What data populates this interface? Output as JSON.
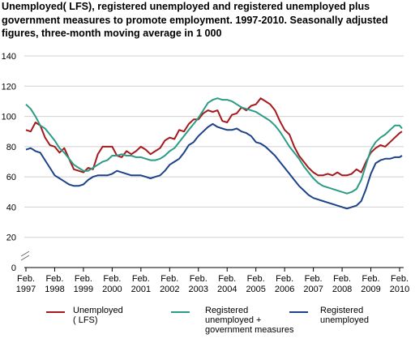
{
  "title_lines": [
    "Unemployed( LFS), registered unemployed and registered unemployed plus",
    "government measures to promote employment. 1997-2010. Seasonally adjusted",
    "figures, three-month moving average in 1 000"
  ],
  "chart_data": {
    "type": "line",
    "title": "Unemployed( LFS), registered unemployed and registered unemployed plus government measures to promote employment. 1997-2010. Seasonally adjusted figures, three-month moving average in 1 000",
    "xlabel": "",
    "ylabel": "",
    "ylim": [
      0,
      140
    ],
    "y_ticks": [
      0,
      20,
      40,
      60,
      80,
      100,
      120,
      140
    ],
    "y_axis_break": true,
    "grid": "horizontal",
    "legend_position": "bottom",
    "x_tick_labels": [
      [
        "Feb.",
        "1997"
      ],
      [
        "Feb.",
        "1998"
      ],
      [
        "Feb.",
        "1999"
      ],
      [
        "Feb.",
        "2000"
      ],
      [
        "Feb.",
        "2001"
      ],
      [
        "Feb.",
        "2002"
      ],
      [
        "Feb.",
        "2003"
      ],
      [
        "Feb.",
        "2004"
      ],
      [
        "Feb.",
        "2005"
      ],
      [
        "Feb.",
        "2006"
      ],
      [
        "Feb.",
        "2007"
      ],
      [
        "Feb.",
        "2008"
      ],
      [
        "Feb.",
        "2009"
      ],
      [
        "Feb.",
        "2010"
      ]
    ],
    "series": [
      {
        "name": "Unemployed ( LFS)",
        "legend_lines": [
          "Unemployed",
          "( LFS)"
        ],
        "color": "#a5191d",
        "points": [
          [
            "1997-02",
            91
          ],
          [
            "1997-04",
            90
          ],
          [
            "1997-06",
            96
          ],
          [
            "1997-08",
            94
          ],
          [
            "1997-10",
            86
          ],
          [
            "1997-12",
            81
          ],
          [
            "1998-02",
            80
          ],
          [
            "1998-04",
            76
          ],
          [
            "1998-06",
            79
          ],
          [
            "1998-08",
            72
          ],
          [
            "1998-10",
            65
          ],
          [
            "1998-12",
            64
          ],
          [
            "1999-02",
            63
          ],
          [
            "1999-04",
            66
          ],
          [
            "1999-06",
            65
          ],
          [
            "1999-08",
            75
          ],
          [
            "1999-10",
            80
          ],
          [
            "1999-12",
            80
          ],
          [
            "2000-02",
            80
          ],
          [
            "2000-04",
            74
          ],
          [
            "2000-06",
            73
          ],
          [
            "2000-08",
            77
          ],
          [
            "2000-10",
            75
          ],
          [
            "2000-12",
            77
          ],
          [
            "2001-02",
            80
          ],
          [
            "2001-04",
            78
          ],
          [
            "2001-06",
            75
          ],
          [
            "2001-08",
            77
          ],
          [
            "2001-10",
            79
          ],
          [
            "2001-12",
            84
          ],
          [
            "2002-02",
            86
          ],
          [
            "2002-04",
            85
          ],
          [
            "2002-06",
            91
          ],
          [
            "2002-08",
            90
          ],
          [
            "2002-10",
            95
          ],
          [
            "2002-12",
            98
          ],
          [
            "2003-02",
            98
          ],
          [
            "2003-04",
            102
          ],
          [
            "2003-06",
            104
          ],
          [
            "2003-08",
            103
          ],
          [
            "2003-10",
            104
          ],
          [
            "2003-12",
            97
          ],
          [
            "2004-02",
            96
          ],
          [
            "2004-04",
            101
          ],
          [
            "2004-06",
            102
          ],
          [
            "2004-08",
            106
          ],
          [
            "2004-10",
            104
          ],
          [
            "2004-12",
            107
          ],
          [
            "2005-02",
            108
          ],
          [
            "2005-04",
            112
          ],
          [
            "2005-06",
            110
          ],
          [
            "2005-08",
            108
          ],
          [
            "2005-10",
            104
          ],
          [
            "2005-12",
            97
          ],
          [
            "2006-02",
            91
          ],
          [
            "2006-04",
            88
          ],
          [
            "2006-06",
            80
          ],
          [
            "2006-08",
            74
          ],
          [
            "2006-10",
            70
          ],
          [
            "2006-12",
            66
          ],
          [
            "2007-02",
            63
          ],
          [
            "2007-04",
            61
          ],
          [
            "2007-06",
            61
          ],
          [
            "2007-08",
            62
          ],
          [
            "2007-10",
            61
          ],
          [
            "2007-12",
            63
          ],
          [
            "2008-02",
            61
          ],
          [
            "2008-04",
            61
          ],
          [
            "2008-06",
            62
          ],
          [
            "2008-08",
            65
          ],
          [
            "2008-10",
            63
          ],
          [
            "2008-12",
            70
          ],
          [
            "2009-02",
            76
          ],
          [
            "2009-04",
            79
          ],
          [
            "2009-06",
            81
          ],
          [
            "2009-08",
            80
          ],
          [
            "2009-10",
            83
          ],
          [
            "2009-12",
            86
          ],
          [
            "2010-02",
            89
          ],
          [
            "2010-03",
            90
          ]
        ]
      },
      {
        "name": "Registered unemployed + government measures",
        "legend_lines": [
          "Registered",
          "unemployed +",
          "government measures"
        ],
        "color": "#2a9c86",
        "points": [
          [
            "1997-02",
            108
          ],
          [
            "1997-04",
            105
          ],
          [
            "1997-06",
            100
          ],
          [
            "1997-08",
            94
          ],
          [
            "1997-10",
            92
          ],
          [
            "1997-12",
            88
          ],
          [
            "1998-02",
            84
          ],
          [
            "1998-04",
            79
          ],
          [
            "1998-06",
            76
          ],
          [
            "1998-08",
            72
          ],
          [
            "1998-10",
            68
          ],
          [
            "1998-12",
            66
          ],
          [
            "1999-02",
            64
          ],
          [
            "1999-04",
            64
          ],
          [
            "1999-06",
            66
          ],
          [
            "1999-08",
            68
          ],
          [
            "1999-10",
            70
          ],
          [
            "1999-12",
            71
          ],
          [
            "2000-02",
            74
          ],
          [
            "2000-04",
            74
          ],
          [
            "2000-06",
            75
          ],
          [
            "2000-08",
            74
          ],
          [
            "2000-10",
            74
          ],
          [
            "2000-12",
            73
          ],
          [
            "2001-02",
            73
          ],
          [
            "2001-04",
            72
          ],
          [
            "2001-06",
            71
          ],
          [
            "2001-08",
            71
          ],
          [
            "2001-10",
            72
          ],
          [
            "2001-12",
            74
          ],
          [
            "2002-02",
            77
          ],
          [
            "2002-04",
            79
          ],
          [
            "2002-06",
            83
          ],
          [
            "2002-08",
            87
          ],
          [
            "2002-10",
            91
          ],
          [
            "2002-12",
            95
          ],
          [
            "2003-02",
            99
          ],
          [
            "2003-04",
            104
          ],
          [
            "2003-06",
            109
          ],
          [
            "2003-08",
            111
          ],
          [
            "2003-10",
            112
          ],
          [
            "2003-12",
            111
          ],
          [
            "2004-02",
            111
          ],
          [
            "2004-04",
            110
          ],
          [
            "2004-06",
            108
          ],
          [
            "2004-08",
            106
          ],
          [
            "2004-10",
            105
          ],
          [
            "2004-12",
            104
          ],
          [
            "2005-02",
            103
          ],
          [
            "2005-04",
            101
          ],
          [
            "2005-06",
            99
          ],
          [
            "2005-08",
            97
          ],
          [
            "2005-10",
            94
          ],
          [
            "2005-12",
            90
          ],
          [
            "2006-02",
            85
          ],
          [
            "2006-04",
            80
          ],
          [
            "2006-06",
            76
          ],
          [
            "2006-08",
            72
          ],
          [
            "2006-10",
            67
          ],
          [
            "2006-12",
            63
          ],
          [
            "2007-02",
            59
          ],
          [
            "2007-04",
            56
          ],
          [
            "2007-06",
            54
          ],
          [
            "2007-08",
            53
          ],
          [
            "2007-10",
            52
          ],
          [
            "2007-12",
            51
          ],
          [
            "2008-02",
            50
          ],
          [
            "2008-04",
            49
          ],
          [
            "2008-06",
            50
          ],
          [
            "2008-08",
            52
          ],
          [
            "2008-10",
            58
          ],
          [
            "2008-12",
            68
          ],
          [
            "2009-02",
            78
          ],
          [
            "2009-04",
            83
          ],
          [
            "2009-06",
            86
          ],
          [
            "2009-08",
            88
          ],
          [
            "2009-10",
            91
          ],
          [
            "2009-12",
            94
          ],
          [
            "2010-02",
            94
          ],
          [
            "2010-03",
            92
          ]
        ]
      },
      {
        "name": "Registered unemployed",
        "legend_lines": [
          "Registered",
          "unemployed"
        ],
        "color": "#1d4289",
        "points": [
          [
            "1997-02",
            78
          ],
          [
            "1997-04",
            79
          ],
          [
            "1997-06",
            77
          ],
          [
            "1997-08",
            76
          ],
          [
            "1997-10",
            71
          ],
          [
            "1997-12",
            66
          ],
          [
            "1998-02",
            61
          ],
          [
            "1998-04",
            59
          ],
          [
            "1998-06",
            57
          ],
          [
            "1998-08",
            55
          ],
          [
            "1998-10",
            54
          ],
          [
            "1998-12",
            54
          ],
          [
            "1999-02",
            55
          ],
          [
            "1999-04",
            58
          ],
          [
            "1999-06",
            60
          ],
          [
            "1999-08",
            61
          ],
          [
            "1999-10",
            61
          ],
          [
            "1999-12",
            61
          ],
          [
            "2000-02",
            62
          ],
          [
            "2000-04",
            64
          ],
          [
            "2000-06",
            63
          ],
          [
            "2000-08",
            62
          ],
          [
            "2000-10",
            61
          ],
          [
            "2000-12",
            61
          ],
          [
            "2001-02",
            61
          ],
          [
            "2001-04",
            60
          ],
          [
            "2001-06",
            59
          ],
          [
            "2001-08",
            60
          ],
          [
            "2001-10",
            61
          ],
          [
            "2001-12",
            64
          ],
          [
            "2002-02",
            68
          ],
          [
            "2002-04",
            70
          ],
          [
            "2002-06",
            72
          ],
          [
            "2002-08",
            76
          ],
          [
            "2002-10",
            81
          ],
          [
            "2002-12",
            83
          ],
          [
            "2003-02",
            87
          ],
          [
            "2003-04",
            90
          ],
          [
            "2003-06",
            93
          ],
          [
            "2003-08",
            95
          ],
          [
            "2003-10",
            93
          ],
          [
            "2003-12",
            92
          ],
          [
            "2004-02",
            91
          ],
          [
            "2004-04",
            91
          ],
          [
            "2004-06",
            92
          ],
          [
            "2004-08",
            90
          ],
          [
            "2004-10",
            89
          ],
          [
            "2004-12",
            87
          ],
          [
            "2005-02",
            83
          ],
          [
            "2005-04",
            82
          ],
          [
            "2005-06",
            80
          ],
          [
            "2005-08",
            77
          ],
          [
            "2005-10",
            74
          ],
          [
            "2005-12",
            70
          ],
          [
            "2006-02",
            66
          ],
          [
            "2006-04",
            62
          ],
          [
            "2006-06",
            58
          ],
          [
            "2006-08",
            54
          ],
          [
            "2006-10",
            51
          ],
          [
            "2006-12",
            48
          ],
          [
            "2007-02",
            46
          ],
          [
            "2007-04",
            45
          ],
          [
            "2007-06",
            44
          ],
          [
            "2007-08",
            43
          ],
          [
            "2007-10",
            42
          ],
          [
            "2007-12",
            41
          ],
          [
            "2008-02",
            40
          ],
          [
            "2008-04",
            39
          ],
          [
            "2008-06",
            40
          ],
          [
            "2008-08",
            41
          ],
          [
            "2008-10",
            44
          ],
          [
            "2008-12",
            52
          ],
          [
            "2009-02",
            62
          ],
          [
            "2009-04",
            69
          ],
          [
            "2009-06",
            71
          ],
          [
            "2009-08",
            72
          ],
          [
            "2009-10",
            72
          ],
          [
            "2009-12",
            73
          ],
          [
            "2010-02",
            73
          ],
          [
            "2010-03",
            74
          ]
        ]
      }
    ]
  }
}
